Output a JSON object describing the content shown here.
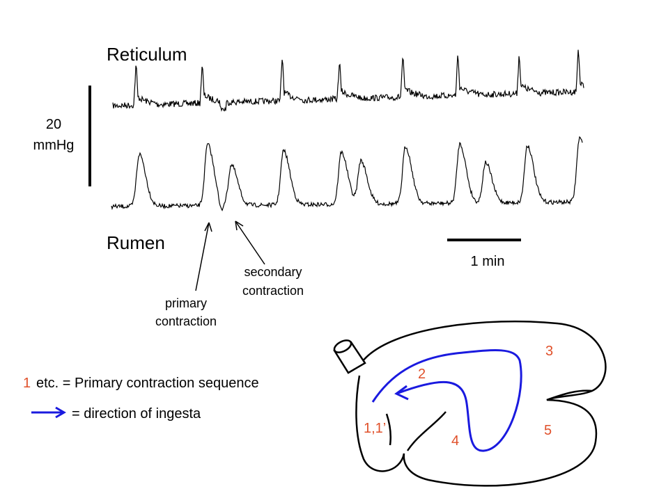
{
  "traces": {
    "top_label": "Reticulum",
    "bottom_label": "Rumen",
    "scale_bar": [
      "20",
      "mmHg"
    ],
    "time_bar": "1 min",
    "annotations": [
      {
        "lines": [
          "primary",
          "contraction"
        ]
      },
      {
        "lines": [
          "secondary",
          "contraction"
        ]
      }
    ]
  },
  "legend": {
    "sequence": {
      "marker": "1",
      "text": "etc. = Primary contraction sequence"
    },
    "arrow": {
      "text": "= direction of ingesta"
    }
  },
  "stomach": {
    "labels": [
      "3",
      "2",
      "1,1’",
      "4",
      "5"
    ]
  }
}
